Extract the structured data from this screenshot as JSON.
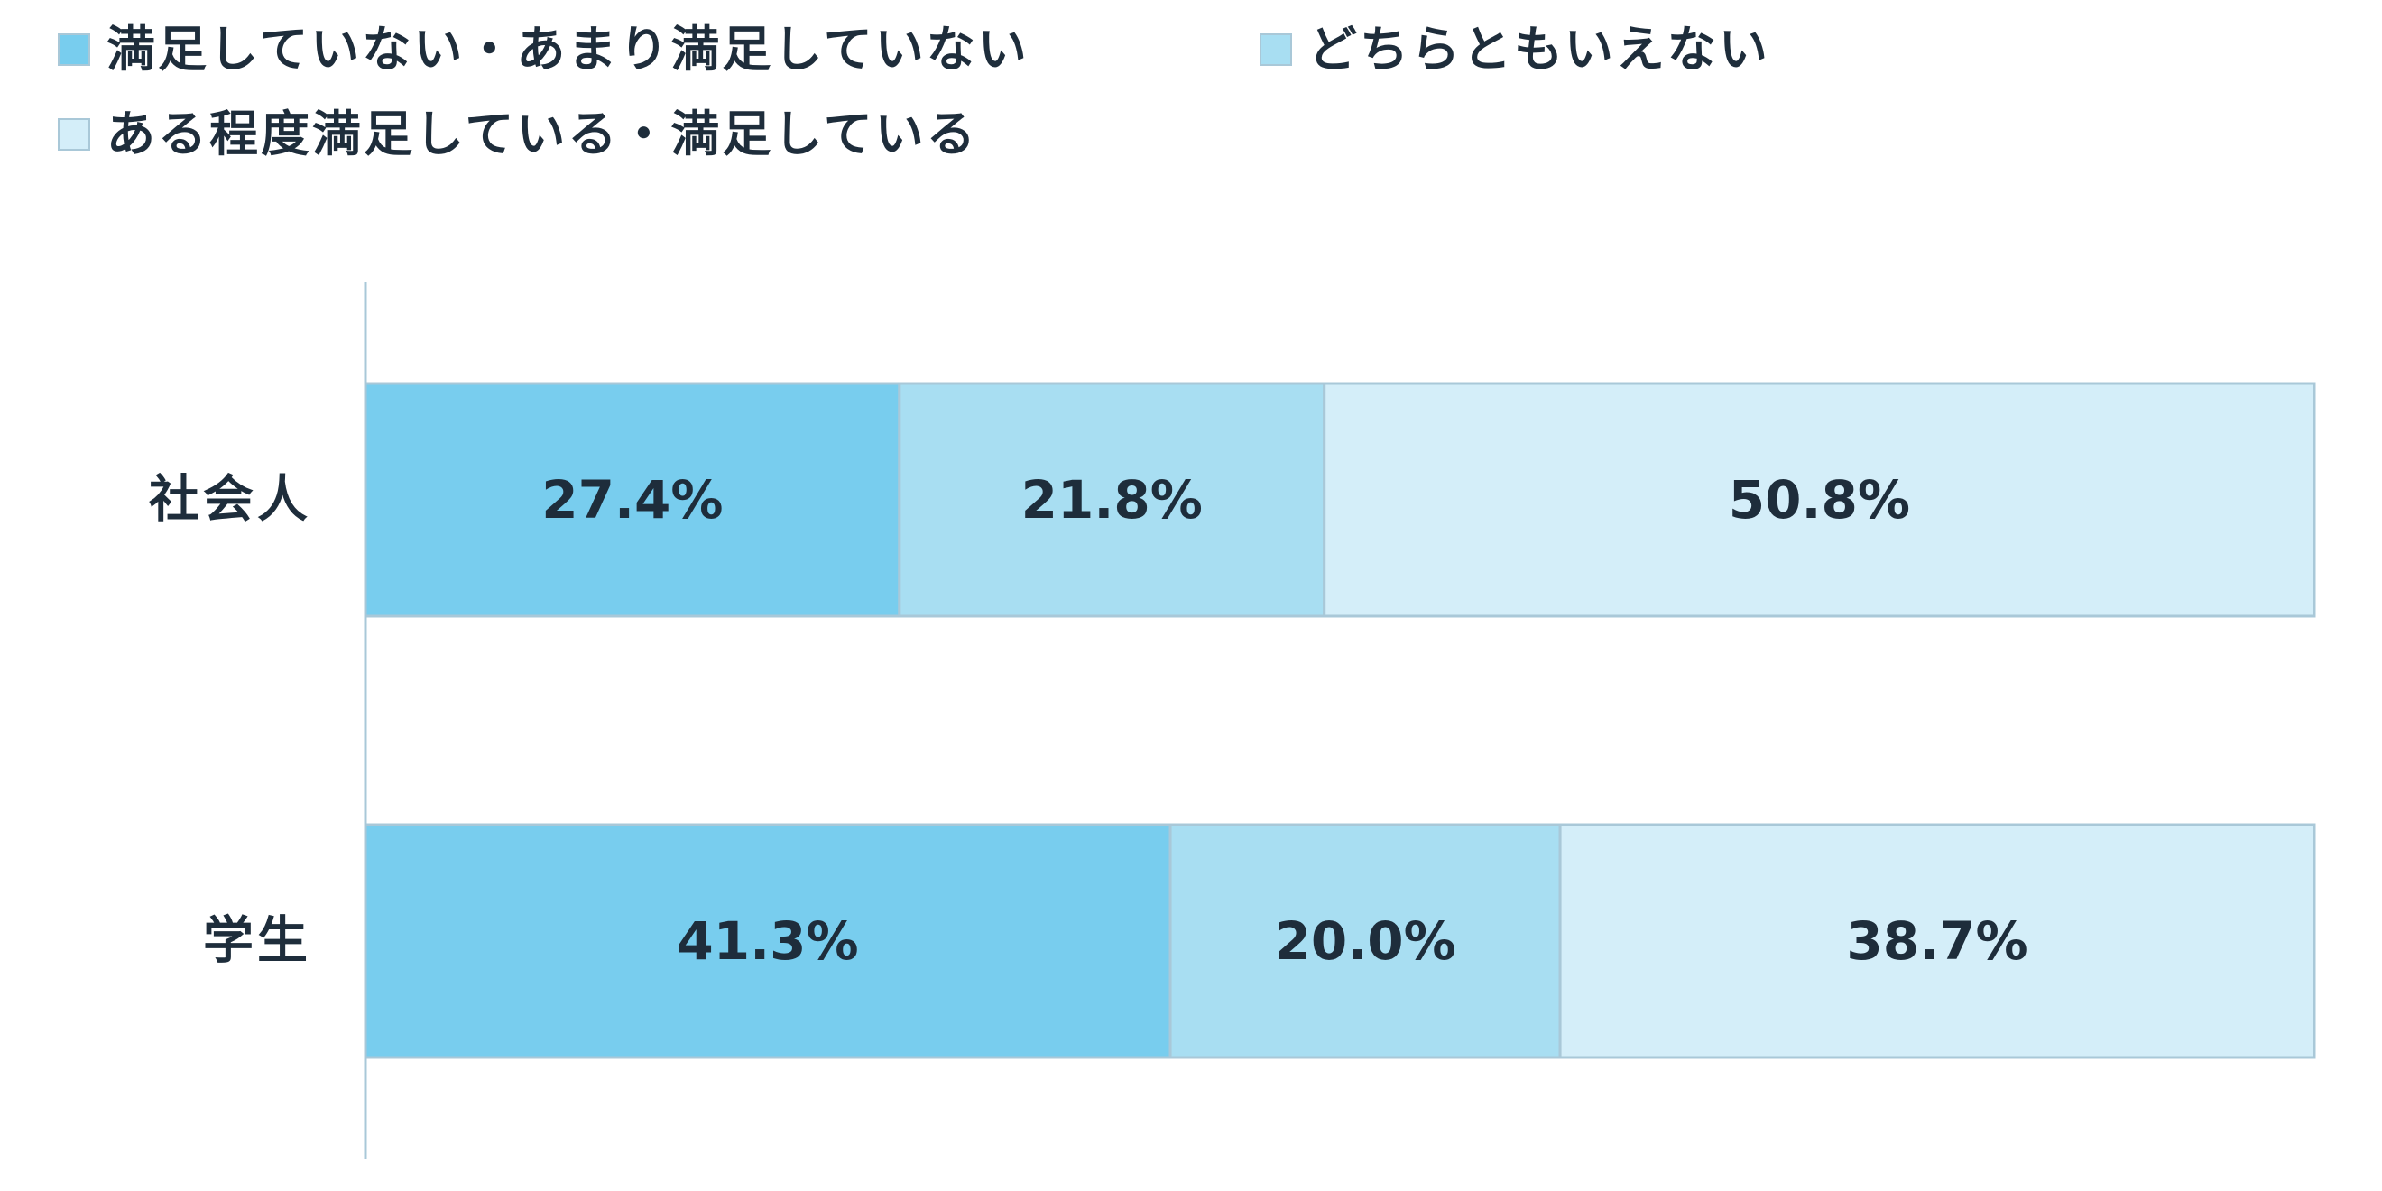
{
  "chart_data": {
    "type": "bar",
    "orientation": "horizontal",
    "stacked": true,
    "percent": true,
    "categories": [
      "社会人",
      "学生"
    ],
    "series": [
      {
        "name": "満足していない・あまり満足していない",
        "color": "#78cdee",
        "values": [
          27.4,
          41.3
        ],
        "labels": [
          "27.4%",
          "41.3%"
        ]
      },
      {
        "name": "どちらともいえない",
        "color": "#a8def2",
        "values": [
          21.8,
          20.0
        ],
        "labels": [
          "21.8%",
          "20.0%"
        ]
      },
      {
        "name": "ある程度満足している・満足している",
        "color": "#d4eef9",
        "values": [
          50.8,
          38.7
        ],
        "labels": [
          "50.8%",
          "38.7%"
        ]
      }
    ],
    "xlim": [
      0,
      100
    ],
    "grid": false,
    "legend_position": "top-left"
  }
}
